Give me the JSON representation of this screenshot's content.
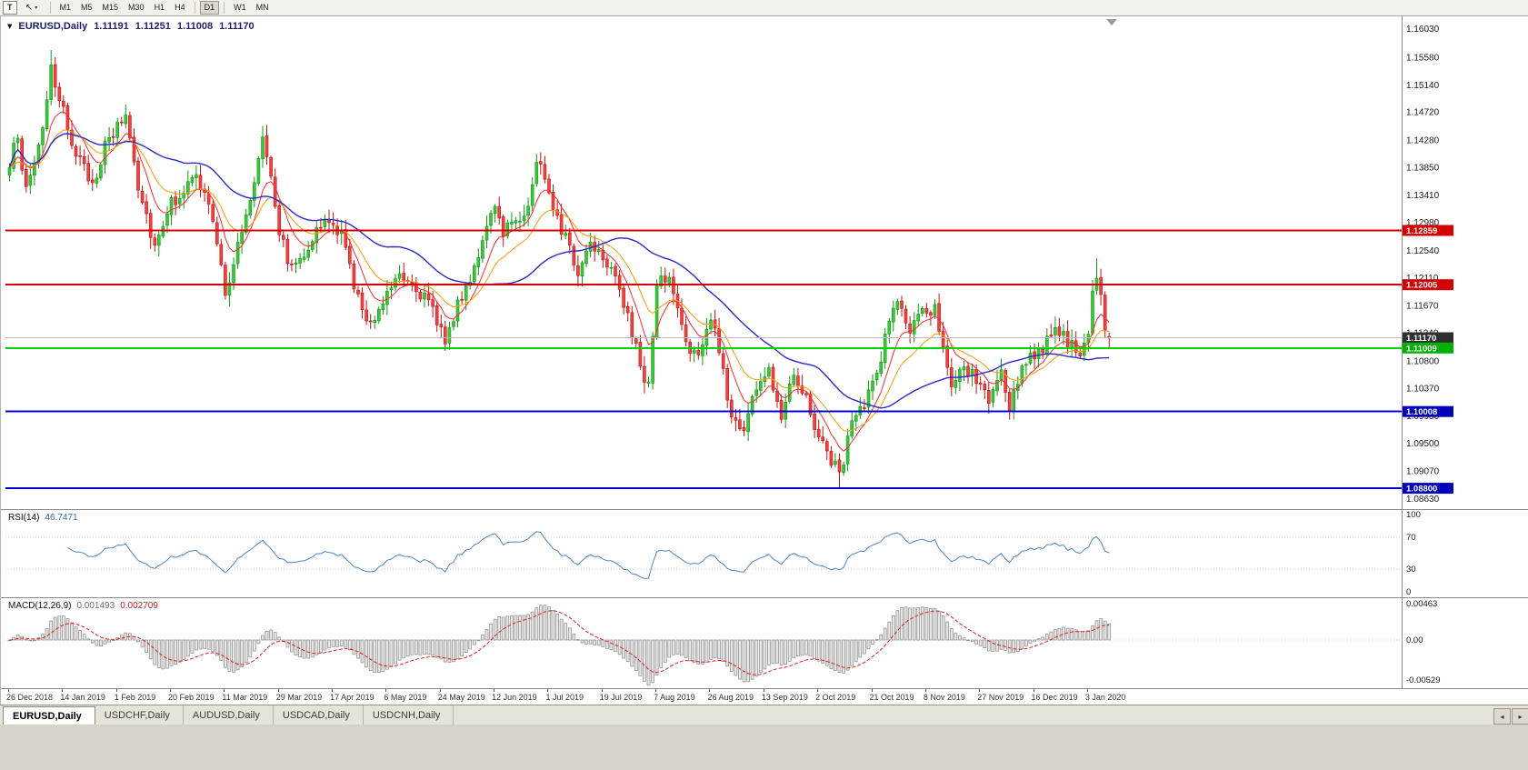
{
  "colors": {
    "up_stroke": "#0E9B0E",
    "up_fill": "#3FC43F",
    "down_stroke": "#C41111",
    "down_fill": "#EF4444",
    "rsi_line": "#4C86C8",
    "macd_hist_fill": "#E6E6E6",
    "macd_hist_stroke": "#8A8A8A",
    "macd_signal": "#E02020",
    "axis_separator": "#8A8A8A",
    "guide_dotted": "#C8C8C8"
  },
  "icons": {
    "cursor_tool": "↖",
    "dropdown_caret": "▾",
    "chart_caret": "▼",
    "tab_scroll_left": "◂",
    "tab_scroll_right": "▸"
  },
  "toolbar": {
    "tool_button_label": "T",
    "timeframes": [
      "M1",
      "M5",
      "M15",
      "M30",
      "H1",
      "H4",
      "D1",
      "W1",
      "MN"
    ],
    "active_timeframe": "D1"
  },
  "header": {
    "symbol": "EURUSD,Daily",
    "open": "1.11191",
    "high": "1.11251",
    "low": "1.11008",
    "close": "1.11170"
  },
  "chart_data": {
    "type": "candlestick",
    "symbol": "EURUSD",
    "timeframe": "Daily",
    "bars": 266,
    "price_axis": {
      "max": 1.1603,
      "min": 1.0863,
      "labels": [
        "1.16030",
        "1.15580",
        "1.15140",
        "1.14720",
        "1.14280",
        "1.13850",
        "1.13410",
        "1.12980",
        "1.12540",
        "1.12110",
        "1.11670",
        "1.11240",
        "1.10800",
        "1.10370",
        "1.09930",
        "1.09500",
        "1.09070",
        "1.08630"
      ]
    },
    "levels": [
      {
        "price": 1.12859,
        "label": "1.12859",
        "line_color": "#D40000",
        "badge_color": "#D40000",
        "width": 2,
        "role": "resistance"
      },
      {
        "price": 1.12005,
        "label": "1.12005",
        "line_color": "#D40000",
        "badge_color": "#D40000",
        "width": 2,
        "role": "resistance"
      },
      {
        "price": 1.1117,
        "label": "1.11170",
        "line_color": "#BBBBBB",
        "badge_color": "#2F2F2F",
        "width": 1,
        "role": "current-price"
      },
      {
        "price": 1.11009,
        "label": "1.11009",
        "line_color": "#00D400",
        "badge_color": "#00B000",
        "width": 2,
        "role": "support"
      },
      {
        "price": 1.10008,
        "label": "1.10008",
        "line_color": "#0000CC",
        "badge_color": "#0000BB",
        "width": 2,
        "role": "support"
      },
      {
        "price": 1.088,
        "label": "1.08800",
        "line_color": "#0000CC",
        "badge_color": "#0000BB",
        "width": 2,
        "role": "support"
      }
    ],
    "price_anchors": [
      [
        0,
        1.1385
      ],
      [
        2,
        1.144
      ],
      [
        4,
        1.1345
      ],
      [
        6,
        1.1395
      ],
      [
        8,
        1.145
      ],
      [
        10,
        1.1545
      ],
      [
        11,
        1.15
      ],
      [
        13,
        1.147
      ],
      [
        16,
        1.141
      ],
      [
        18,
        1.138
      ],
      [
        20,
        1.1362
      ],
      [
        23,
        1.1415
      ],
      [
        26,
        1.1448
      ],
      [
        28,
        1.147
      ],
      [
        31,
        1.136
      ],
      [
        35,
        1.1262
      ],
      [
        38,
        1.132
      ],
      [
        41,
        1.1345
      ],
      [
        45,
        1.1368
      ],
      [
        48,
        1.133
      ],
      [
        52,
        1.119
      ],
      [
        55,
        1.126
      ],
      [
        58,
        1.133
      ],
      [
        61,
        1.1438
      ],
      [
        63,
        1.138
      ],
      [
        65,
        1.1285
      ],
      [
        68,
        1.1225
      ],
      [
        71,
        1.1255
      ],
      [
        74,
        1.1285
      ],
      [
        77,
        1.13
      ],
      [
        80,
        1.1278
      ],
      [
        83,
        1.1205
      ],
      [
        86,
        1.1135
      ],
      [
        88,
        1.1155
      ],
      [
        91,
        1.119
      ],
      [
        94,
        1.1225
      ],
      [
        97,
        1.1205
      ],
      [
        100,
        1.118
      ],
      [
        103,
        1.1145
      ],
      [
        105,
        1.1118
      ],
      [
        108,
        1.1165
      ],
      [
        111,
        1.1215
      ],
      [
        114,
        1.1268
      ],
      [
        117,
        1.1318
      ],
      [
        119,
        1.1288
      ],
      [
        122,
        1.1305
      ],
      [
        125,
        1.132
      ],
      [
        127,
        1.1398
      ],
      [
        129,
        1.1372
      ],
      [
        132,
        1.131
      ],
      [
        135,
        1.1255
      ],
      [
        137,
        1.1218
      ],
      [
        140,
        1.1272
      ],
      [
        143,
        1.1248
      ],
      [
        146,
        1.1222
      ],
      [
        149,
        1.1145
      ],
      [
        152,
        1.1075
      ],
      [
        154,
        1.104
      ],
      [
        156,
        1.1195
      ],
      [
        158,
        1.1215
      ],
      [
        160,
        1.119
      ],
      [
        163,
        1.111
      ],
      [
        166,
        1.1085
      ],
      [
        169,
        1.1148
      ],
      [
        171,
        1.1098
      ],
      [
        174,
        1.0992
      ],
      [
        177,
        1.0975
      ],
      [
        180,
        1.1042
      ],
      [
        183,
        1.1062
      ],
      [
        186,
        1.1
      ],
      [
        189,
        1.1068
      ],
      [
        192,
        1.102
      ],
      [
        195,
        1.0962
      ],
      [
        198,
        1.0925
      ],
      [
        200,
        1.0902
      ],
      [
        203,
        1.0982
      ],
      [
        206,
        1.101
      ],
      [
        209,
        1.106
      ],
      [
        212,
        1.1148
      ],
      [
        214,
        1.1172
      ],
      [
        217,
        1.1128
      ],
      [
        220,
        1.1152
      ],
      [
        223,
        1.1168
      ],
      [
        225,
        1.111
      ],
      [
        227,
        1.1032
      ],
      [
        230,
        1.1068
      ],
      [
        233,
        1.1052
      ],
      [
        236,
        1.1018
      ],
      [
        239,
        1.1062
      ],
      [
        241,
        1.0998
      ],
      [
        244,
        1.1078
      ],
      [
        247,
        1.1092
      ],
      [
        250,
        1.1108
      ],
      [
        253,
        1.1128
      ],
      [
        255,
        1.1112
      ],
      [
        258,
        1.1082
      ],
      [
        260,
        1.1118
      ],
      [
        261,
        1.1195
      ],
      [
        262,
        1.1218
      ],
      [
        263,
        1.1175
      ],
      [
        264,
        1.1122
      ],
      [
        265,
        1.1117
      ]
    ],
    "highs_override": [
      [
        10,
        1.157
      ],
      [
        262,
        1.1242
      ]
    ],
    "lows_override": [
      [
        200,
        1.0879
      ],
      [
        241,
        1.0988
      ]
    ],
    "last_ohlc": {
      "open": 1.11191,
      "high": 1.11251,
      "low": 1.11008,
      "close": 1.1117
    },
    "moving_averages": [
      {
        "type": "EMA",
        "period": 8,
        "color": "#FF2A2A"
      },
      {
        "type": "EMA",
        "period": 17,
        "color": "#FF9900"
      },
      {
        "type": "SMA",
        "period": 40,
        "color": "#2A2AC8"
      }
    ],
    "x_label_step_bars": 13,
    "x_labels": [
      "26 Dec 2018",
      "14 Jan 2019",
      "1 Feb 2019",
      "20 Feb 2019",
      "11 Mar 2019",
      "29 Mar 2019",
      "17 Apr 2019",
      "6 May 2019",
      "24 May 2019",
      "12 Jun 2019",
      "1 Jul 2019",
      "19 Jul 2019",
      "7 Aug 2019",
      "26 Aug 2019",
      "13 Sep 2019",
      "2 Oct 2019",
      "21 Oct 2019",
      "8 Nov 2019",
      "27 Nov 2019",
      "16 Dec 2019",
      "3 Jan 2020"
    ],
    "rsi": {
      "name": "RSI(14)",
      "value": "46.7471",
      "period": 14,
      "axis_labels": [
        "100",
        "70",
        "30",
        "0"
      ],
      "guide_levels": [
        70,
        30
      ]
    },
    "macd": {
      "name": "MACD(12,26,9)",
      "macd_value": "0.001493",
      "signal_value": "0.002709",
      "fast": 12,
      "slow": 26,
      "signal": 9,
      "axis_max": 0.00463,
      "axis_min": -0.00529,
      "axis_max_label": "0.00463",
      "axis_zero_label": "0.00",
      "axis_min_label": "-0.00529"
    }
  },
  "tabs": {
    "items": [
      {
        "label": "EURUSD,Daily",
        "active": true
      },
      {
        "label": "USDCHF,Daily",
        "active": false
      },
      {
        "label": "AUDUSD,Daily",
        "active": false
      },
      {
        "label": "USDCAD,Daily",
        "active": false
      },
      {
        "label": "USDCNH,Daily",
        "active": false
      }
    ]
  }
}
